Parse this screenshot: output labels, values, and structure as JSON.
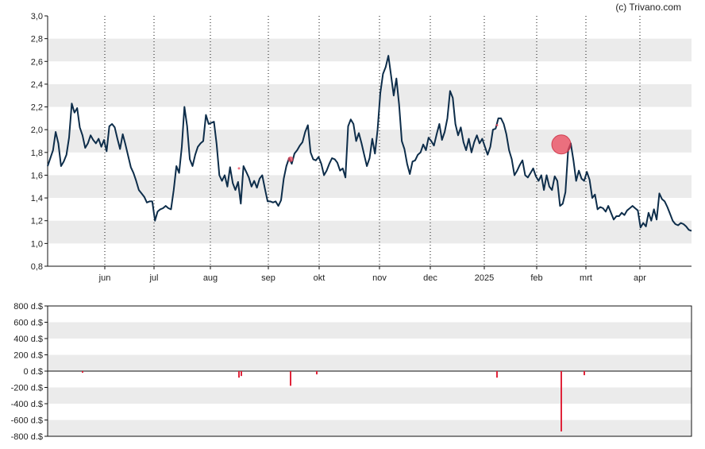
{
  "credit": "(c) Trivano.com",
  "chart_data": [
    {
      "type": "line",
      "ylim": [
        0.8,
        3.0
      ],
      "yticks": [
        "3,0",
        "2,8",
        "2,6",
        "2,4",
        "2,2",
        "2,0",
        "1,8",
        "1,6",
        "1,4",
        "1,2",
        "1,0",
        "0,8"
      ],
      "month_labels": [
        "jun",
        "jul",
        "aug",
        "sep",
        "okt",
        "nov",
        "dec",
        "2025",
        "feb",
        "mrt",
        "apr"
      ],
      "series": [
        {
          "values": [
            1.68,
            1.75,
            1.82,
            1.98,
            1.88,
            1.68,
            1.72,
            1.78,
            1.93,
            2.23,
            2.15,
            2.19,
            2.02,
            1.95,
            1.84,
            1.88,
            1.95,
            1.91,
            1.88,
            1.92,
            1.85,
            1.91,
            1.81,
            2.03,
            2.05,
            2.02,
            1.92,
            1.83,
            1.96,
            1.87,
            1.77,
            1.67,
            1.62,
            1.55,
            1.47,
            1.44,
            1.41,
            1.36,
            1.37,
            1.37,
            1.2,
            1.28,
            1.3,
            1.31,
            1.33,
            1.31,
            1.3,
            1.47,
            1.68,
            1.62,
            1.85,
            2.2,
            2.03,
            1.74,
            1.68,
            1.78,
            1.85,
            1.88,
            1.9,
            2.13,
            2.05,
            2.06,
            2.07,
            1.87,
            1.6,
            1.55,
            1.6,
            1.5,
            1.67,
            1.53,
            1.47,
            1.54,
            1.35,
            1.68,
            1.63,
            1.58,
            1.5,
            1.55,
            1.49,
            1.57,
            1.6,
            1.48,
            1.37,
            1.37,
            1.36,
            1.37,
            1.33,
            1.38,
            1.57,
            1.68,
            1.75,
            1.7,
            1.79,
            1.82,
            1.86,
            1.89,
            1.98,
            2.04,
            1.8,
            1.74,
            1.73,
            1.76,
            1.7,
            1.6,
            1.64,
            1.7,
            1.75,
            1.74,
            1.71,
            1.64,
            1.66,
            1.58,
            2.03,
            2.09,
            2.05,
            1.9,
            1.97,
            1.88,
            1.78,
            1.68,
            1.75,
            1.92,
            1.79,
            2.0,
            2.32,
            2.49,
            2.55,
            2.65,
            2.48,
            2.3,
            2.45,
            2.22,
            1.9,
            1.83,
            1.7,
            1.61,
            1.72,
            1.73,
            1.78,
            1.8,
            1.87,
            1.82,
            1.93,
            1.9,
            1.86,
            1.96,
            2.05,
            1.91,
            1.98,
            2.1,
            2.34,
            2.28,
            2.05,
            1.95,
            2.02,
            1.89,
            1.82,
            1.92,
            1.8,
            1.89,
            1.95,
            1.88,
            1.92,
            1.85,
            1.78,
            1.85,
            2.0,
            2.01,
            2.1,
            2.1,
            2.05,
            1.96,
            1.82,
            1.74,
            1.6,
            1.64,
            1.69,
            1.73,
            1.6,
            1.58,
            1.62,
            1.66,
            1.59,
            1.55,
            1.6,
            1.47,
            1.6,
            1.5,
            1.47,
            1.59,
            1.55,
            1.33,
            1.35,
            1.45,
            1.82,
            1.88,
            1.73,
            1.55,
            1.64,
            1.57,
            1.55,
            1.63,
            1.56,
            1.4,
            1.43,
            1.3,
            1.32,
            1.31,
            1.28,
            1.33,
            1.27,
            1.21,
            1.24,
            1.24,
            1.27,
            1.25,
            1.29,
            1.31,
            1.33,
            1.31,
            1.29,
            1.14,
            1.18,
            1.15,
            1.27,
            1.2,
            1.3,
            1.21,
            1.44,
            1.39,
            1.37,
            1.32,
            1.26,
            1.2,
            1.17,
            1.16,
            1.18,
            1.17,
            1.15,
            1.12,
            1.11
          ]
        }
      ],
      "transaction_markers": [
        {
          "day": 4,
          "value": 1.87,
          "size": "large"
        },
        {
          "day": 100,
          "value": 1.74,
          "size": "small"
        },
        {
          "day": 16,
          "value": 2.04,
          "size": "tiny"
        },
        {
          "day": 0,
          "value": 1.66,
          "size": "tiny"
        }
      ]
    },
    {
      "type": "bar",
      "ylim": [
        -800,
        800
      ],
      "yticks": [
        "800 d.$",
        "600 d.$",
        "400 d.$",
        "200 d.$",
        "0 d.$",
        "-200 d.$",
        "-400 d.$",
        "-600 d.$",
        "-800 d.$"
      ],
      "values": [
        -20,
        -80,
        -60,
        -180,
        -40,
        -80,
        -740,
        -50
      ]
    }
  ]
}
